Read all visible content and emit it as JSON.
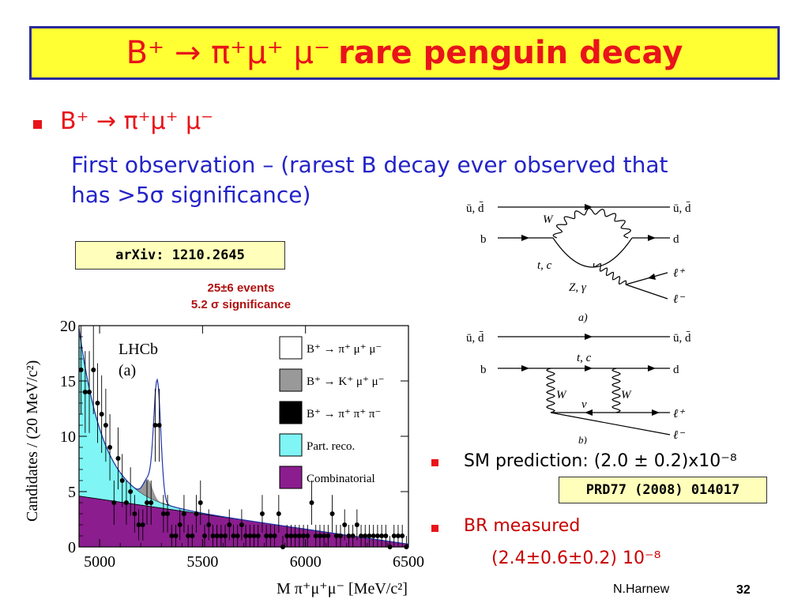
{
  "title": {
    "decay": "B⁺ → π⁺μ⁺ μ⁻",
    "emphasis": "rare penguin decay"
  },
  "bullet1": {
    "decay": "B⁺ → π⁺μ⁺ μ⁻",
    "description_line1": "First observation – (rarest B decay ever observed that",
    "description_line2": "has >5σ significance)"
  },
  "arxiv_ref": "arXiv: 1210.2645",
  "events": {
    "line1": "25±6 events",
    "line2": "5.2 σ significance"
  },
  "bullet2": {
    "sm_prediction": "SM prediction:  (2.0 ± 0.2)x10⁻⁸",
    "prd_ref": "PRD77 (2008) 014017"
  },
  "bullet3": {
    "label": "BR measured",
    "value": "(2.4±0.6±0.2) 10⁻⁸"
  },
  "footer": {
    "author": "N.Harnew",
    "page": "32"
  },
  "colors": {
    "title_bg": "#ffff33",
    "title_border": "#2a2a9e",
    "red": "#e8141a",
    "blue": "#2323c8",
    "part_reco": "#7ff5f5",
    "combinatorial": "#8b1d8e",
    "peaking_bkg": "#999999"
  },
  "feynman": {
    "a": {
      "quark_left": "ū, d̄",
      "quark_right": "ū, d̄",
      "b": "b",
      "d": "d",
      "w": "W",
      "tc": "t, c",
      "zg": "Z, γ",
      "lp": "ℓ⁺",
      "lm": "ℓ⁻",
      "label": "a)"
    },
    "b": {
      "quark_left": "ū, d̄",
      "quark_right": "ū, d̄",
      "b": "b",
      "d": "d",
      "tc": "t, c",
      "w1": "W",
      "w2": "W",
      "nu": "ν",
      "lp": "ℓ⁺",
      "lm": "ℓ⁻",
      "label": "b)"
    }
  },
  "chart_data": {
    "type": "scatter",
    "xlabel": "M π⁺μ⁺μ⁻ [MeV/c²]",
    "ylabel": "Candidates / (20 MeV/c²)",
    "xlim": [
      4900,
      6500
    ],
    "ylim": [
      0,
      20
    ],
    "xticks": [
      5000,
      5500,
      6000,
      6500
    ],
    "yticks": [
      0,
      5,
      10,
      15,
      20
    ],
    "inner_labels": [
      "LHCb",
      "(a)"
    ],
    "legend_position": "right",
    "legend": [
      {
        "label": "B⁺ → π⁺ μ⁺ μ⁻",
        "color": "#ffffff"
      },
      {
        "label": "B⁺ → K⁺ μ⁺ μ⁻",
        "color": "#999999"
      },
      {
        "label": "B⁺ → π⁺ π⁺ π⁻",
        "color": "#000000"
      },
      {
        "label": "Part. reco.",
        "color": "#7ff5f5"
      },
      {
        "label": "Combinatorial",
        "color": "#8b1d8e"
      }
    ],
    "points": {
      "x": [
        4910,
        4930,
        4950,
        4970,
        4990,
        5010,
        5030,
        5050,
        5070,
        5090,
        5110,
        5130,
        5150,
        5170,
        5190,
        5210,
        5230,
        5250,
        5270,
        5290,
        5310,
        5330,
        5350,
        5370,
        5390,
        5410,
        5430,
        5450,
        5470,
        5490,
        5510,
        5530,
        5550,
        5570,
        5590,
        5610,
        5630,
        5650,
        5670,
        5690,
        5710,
        5730,
        5750,
        5770,
        5790,
        5810,
        5830,
        5850,
        5870,
        5890,
        5910,
        5930,
        5950,
        5970,
        5990,
        6010,
        6030,
        6050,
        6070,
        6090,
        6110,
        6130,
        6150,
        6170,
        6190,
        6210,
        6230,
        6250,
        6270,
        6290,
        6310,
        6330,
        6350,
        6370,
        6390,
        6410,
        6430,
        6450,
        6470,
        6490
      ],
      "y": [
        16,
        14,
        14,
        16,
        13,
        12,
        11,
        9,
        4,
        8,
        6,
        4,
        5,
        3,
        2,
        2,
        4,
        4,
        11,
        11,
        3,
        3,
        1,
        1,
        2,
        3,
        1,
        1,
        3,
        4,
        1,
        2,
        1,
        1,
        1,
        1,
        2,
        1,
        1,
        2,
        1,
        1,
        1,
        1,
        3,
        1,
        1,
        1,
        3,
        0,
        1,
        1,
        1,
        1,
        1,
        1,
        4,
        1,
        1,
        1,
        1,
        3,
        1,
        1,
        2,
        1,
        1,
        2,
        1,
        1,
        1,
        1,
        1,
        1,
        1,
        0,
        1,
        1,
        1,
        0
      ],
      "err": [
        4,
        3.7,
        3.7,
        4,
        3.6,
        3.5,
        3.3,
        3,
        2,
        2.8,
        2.4,
        2,
        2.2,
        1.7,
        1.4,
        1.4,
        2,
        2,
        3.3,
        3.3,
        1.7,
        1.7,
        1,
        1,
        1.4,
        1.7,
        1,
        1,
        1.7,
        2,
        1,
        1.4,
        1,
        1,
        1,
        1,
        1.4,
        1,
        1,
        1.4,
        1,
        1,
        1,
        1,
        1.7,
        1,
        1,
        1,
        1.7,
        1,
        1,
        1,
        1,
        1,
        1,
        1,
        2,
        1,
        1,
        1,
        1,
        1.7,
        1,
        1,
        1.4,
        1,
        1,
        1.4,
        1,
        1,
        1,
        1,
        1,
        1,
        1,
        1,
        1,
        1,
        1,
        1
      ]
    },
    "curves": {
      "combinatorial": {
        "x0": 4900,
        "y0": 4.6,
        "x1": 6500,
        "y1": 0.25
      },
      "part_reco": {
        "amplitude": 15.2,
        "decay": 115
      },
      "peaking_kaon": {
        "mean": 5235,
        "sigma": 22,
        "height": 1.6
      },
      "signal": {
        "mean": 5280,
        "sigma": 17,
        "height": 10.8
      }
    }
  }
}
